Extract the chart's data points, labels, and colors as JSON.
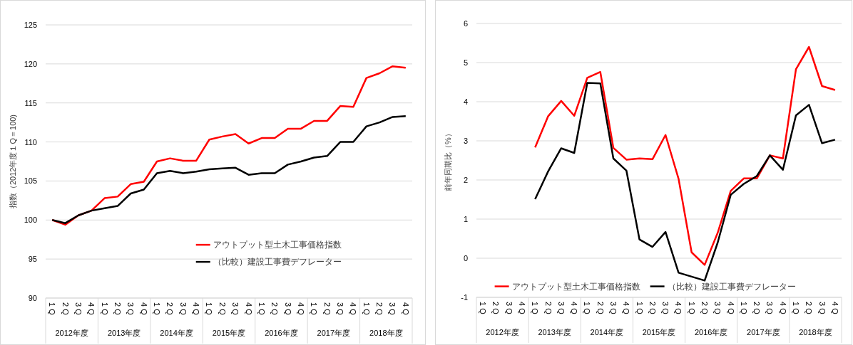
{
  "chart_data": [
    {
      "type": "line",
      "ylabel": "指数（2012年度１Q＝100)",
      "categories": [
        "1 Q",
        "2 Q",
        "3 Q",
        "4 Q",
        "1 Q",
        "2 Q",
        "3 Q",
        "4 Q",
        "1 Q",
        "2 Q",
        "3 Q",
        "4 Q",
        "1 Q",
        "2 Q",
        "3 Q",
        "4 Q",
        "1 Q",
        "2 Q",
        "3 Q",
        "4 Q",
        "1 Q",
        "2 Q",
        "3 Q",
        "4 Q",
        "1 Q",
        "2 Q",
        "3 Q",
        "4 Q"
      ],
      "annotations": [
        "2012年度",
        "2013年度",
        "2014年度",
        "2015年度",
        "2016年度",
        "2017年度",
        "2018年度"
      ],
      "ylim": [
        90,
        125
      ],
      "yticks": [
        90,
        95,
        100,
        105,
        110,
        115,
        120,
        125
      ],
      "grid": "y",
      "legend": "bottom",
      "marker": "none",
      "series": [
        {
          "name": "アウトプット型土木工事価格指数",
          "color": "#ff0000",
          "values": [
            100,
            99.4,
            100.6,
            101.2,
            102.8,
            103.0,
            104.6,
            104.9,
            107.5,
            107.9,
            107.6,
            107.6,
            110.3,
            110.7,
            111.0,
            109.8,
            110.5,
            110.5,
            111.7,
            111.7,
            112.7,
            112.7,
            114.6,
            114.5,
            118.2,
            118.8,
            119.7,
            119.5
          ]
        },
        {
          "name": "（比較）建設工事費デフレーター",
          "color": "#000000",
          "values": [
            100,
            99.6,
            100.6,
            101.2,
            101.5,
            101.8,
            103.4,
            103.9,
            106.0,
            106.3,
            106.0,
            106.2,
            106.5,
            106.6,
            106.7,
            105.8,
            106.0,
            106.0,
            107.1,
            107.5,
            108.0,
            108.2,
            110.0,
            110.0,
            112.0,
            112.5,
            113.2,
            113.3
          ]
        }
      ]
    },
    {
      "type": "line",
      "ylabel": "前年同期比（%）",
      "categories": [
        "1 Q",
        "2 Q",
        "3 Q",
        "4 Q",
        "1 Q",
        "2 Q",
        "3 Q",
        "4 Q",
        "1 Q",
        "2 Q",
        "3 Q",
        "4 Q",
        "1 Q",
        "2 Q",
        "3 Q",
        "4 Q",
        "1 Q",
        "2 Q",
        "3 Q",
        "4 Q",
        "1 Q",
        "2 Q",
        "3 Q",
        "4 Q",
        "1 Q",
        "2 Q",
        "3 Q",
        "4 Q"
      ],
      "annotations": [
        "2012年度",
        "2013年度",
        "2014年度",
        "2015年度",
        "2016年度",
        "2017年度",
        "2018年度"
      ],
      "ylim": [
        -1,
        6
      ],
      "yticks": [
        -1,
        0,
        1,
        2,
        3,
        4,
        5,
        6
      ],
      "grid": "y",
      "legend": "bottom",
      "marker": "none",
      "series": [
        {
          "name": "アウトプット型土木工事価格指数",
          "color": "#ff0000",
          "values": [
            null,
            null,
            null,
            null,
            2.83,
            3.63,
            4.02,
            3.64,
            4.61,
            4.76,
            2.82,
            2.52,
            2.55,
            2.53,
            3.15,
            2.03,
            0.15,
            -0.17,
            0.65,
            1.72,
            2.04,
            2.04,
            2.63,
            2.55,
            4.83,
            5.4,
            4.4,
            4.3
          ]
        },
        {
          "name": "（比較）建設工事費デフレーター",
          "color": "#000000",
          "values": [
            null,
            null,
            null,
            null,
            1.51,
            2.22,
            2.81,
            2.69,
            4.48,
            4.47,
            2.55,
            2.24,
            0.48,
            0.29,
            0.67,
            -0.37,
            -0.47,
            -0.57,
            0.4,
            1.62,
            1.9,
            2.1,
            2.63,
            2.26,
            3.65,
            3.92,
            2.94,
            3.03
          ]
        }
      ]
    }
  ]
}
